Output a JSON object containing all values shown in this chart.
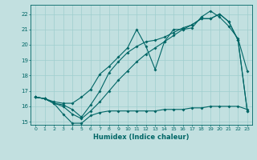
{
  "xlabel": "Humidex (Indice chaleur)",
  "ylabel": "",
  "bg_color": "#c2e0e0",
  "line_color": "#006666",
  "grid_color": "#9fcece",
  "xlim": [
    -0.5,
    23.5
  ],
  "ylim": [
    14.8,
    22.6
  ],
  "yticks": [
    15,
    16,
    17,
    18,
    19,
    20,
    21,
    22
  ],
  "xticks": [
    0,
    1,
    2,
    3,
    4,
    5,
    6,
    7,
    8,
    9,
    10,
    11,
    12,
    13,
    14,
    15,
    16,
    17,
    18,
    19,
    20,
    21,
    22,
    23
  ],
  "line1_x": [
    0,
    1,
    2,
    3,
    4,
    5,
    6,
    7,
    8,
    9,
    10,
    11,
    12,
    13,
    14,
    15,
    16,
    17,
    18,
    19,
    20,
    21,
    22,
    23
  ],
  "line1_y": [
    16.6,
    16.5,
    16.2,
    15.5,
    14.9,
    14.9,
    15.4,
    15.6,
    15.7,
    15.7,
    15.7,
    15.7,
    15.7,
    15.7,
    15.8,
    15.8,
    15.8,
    15.9,
    15.9,
    16.0,
    16.0,
    16.0,
    16.0,
    15.8
  ],
  "line2_x": [
    0,
    1,
    2,
    3,
    4,
    5,
    6,
    7,
    8,
    9,
    10,
    11,
    12,
    13,
    14,
    15,
    16,
    17,
    18,
    19,
    20,
    21,
    22,
    23
  ],
  "line2_y": [
    16.6,
    16.5,
    16.3,
    16.2,
    16.2,
    16.6,
    17.1,
    18.1,
    18.6,
    19.2,
    19.8,
    21.0,
    19.9,
    18.4,
    20.2,
    21.0,
    21.0,
    21.1,
    21.8,
    22.2,
    21.8,
    21.2,
    20.4,
    18.3
  ],
  "line3_x": [
    0,
    1,
    2,
    3,
    4,
    5,
    6,
    7,
    8,
    9,
    10,
    11,
    12,
    13,
    14,
    15,
    16,
    17,
    18,
    19,
    20,
    21,
    22,
    23
  ],
  "line3_y": [
    16.6,
    16.5,
    16.2,
    16.1,
    15.8,
    15.3,
    16.1,
    17.0,
    18.2,
    18.9,
    19.5,
    19.9,
    20.2,
    20.3,
    20.5,
    20.8,
    21.1,
    21.3,
    21.7,
    21.7,
    22.0,
    21.5,
    20.3,
    15.7
  ],
  "line4_x": [
    0,
    1,
    2,
    3,
    4,
    5,
    6,
    7,
    8,
    9,
    10,
    11,
    12,
    13,
    14,
    15,
    16,
    17,
    18,
    19,
    20,
    21,
    22,
    23
  ],
  "line4_y": [
    16.6,
    16.5,
    16.2,
    16.0,
    15.5,
    15.2,
    15.7,
    16.3,
    17.0,
    17.7,
    18.3,
    18.9,
    19.4,
    19.8,
    20.2,
    20.6,
    21.0,
    21.3,
    21.7,
    21.7,
    22.0,
    21.5,
    20.3,
    15.7
  ]
}
